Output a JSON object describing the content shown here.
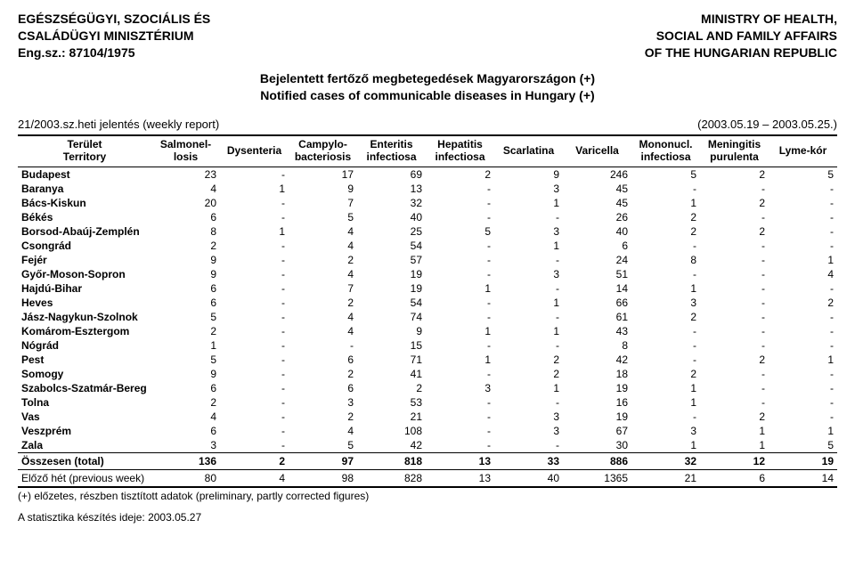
{
  "header": {
    "left_lines": [
      "EGÉSZSÉGÜGYI, SZOCIÁLIS ÉS",
      "CSALÁDÜGYI MINISZTÉRIUM",
      "Eng.sz.: 87104/1975"
    ],
    "right_lines": [
      "MINISTRY OF HEALTH,",
      "SOCIAL AND FAMILY AFFAIRS",
      "OF THE HUNGARIAN REPUBLIC"
    ]
  },
  "title": {
    "hu": "Bejelentett fertőző megbetegedések Magyarországon (+)",
    "en": "Notified cases of communicable diseases in Hungary (+)"
  },
  "subhead": {
    "left": "21/2003.sz.heti jelentés (weekly report)",
    "right": "(2003.05.19 – 2003.05.25.)"
  },
  "columns": [
    "Terület\nTerritory",
    "Salmonel-\nlosis",
    "Dysenteria",
    "Campylo-\nbacteriosis",
    "Enteritis\ninfectiosa",
    "Hepatitis\ninfectiosa",
    "Scarlatina",
    "Varicella",
    "Mononucl.\ninfectiosa",
    "Meningitis\npurulenta",
    "Lyme-kór"
  ],
  "rows": [
    {
      "t": "Budapest",
      "v": [
        "23",
        "-",
        "17",
        "69",
        "2",
        "9",
        "246",
        "5",
        "2",
        "5"
      ]
    },
    {
      "t": "Baranya",
      "v": [
        "4",
        "1",
        "9",
        "13",
        "-",
        "3",
        "45",
        "-",
        "-",
        "-"
      ]
    },
    {
      "t": "Bács-Kiskun",
      "v": [
        "20",
        "-",
        "7",
        "32",
        "-",
        "1",
        "45",
        "1",
        "2",
        "-"
      ]
    },
    {
      "t": "Békés",
      "v": [
        "6",
        "-",
        "5",
        "40",
        "-",
        "-",
        "26",
        "2",
        "-",
        "-"
      ]
    },
    {
      "t": "Borsod-Abaúj-Zemplén",
      "v": [
        "8",
        "1",
        "4",
        "25",
        "5",
        "3",
        "40",
        "2",
        "2",
        "-"
      ]
    },
    {
      "t": "Csongrád",
      "v": [
        "2",
        "-",
        "4",
        "54",
        "-",
        "1",
        "6",
        "-",
        "-",
        "-"
      ]
    },
    {
      "t": "Fejér",
      "v": [
        "9",
        "-",
        "2",
        "57",
        "-",
        "-",
        "24",
        "8",
        "-",
        "1"
      ]
    },
    {
      "t": "Győr-Moson-Sopron",
      "v": [
        "9",
        "-",
        "4",
        "19",
        "-",
        "3",
        "51",
        "-",
        "-",
        "4"
      ]
    },
    {
      "t": "Hajdú-Bihar",
      "v": [
        "6",
        "-",
        "7",
        "19",
        "1",
        "-",
        "14",
        "1",
        "-",
        "-"
      ]
    },
    {
      "t": "Heves",
      "v": [
        "6",
        "-",
        "2",
        "54",
        "-",
        "1",
        "66",
        "3",
        "-",
        "2"
      ]
    },
    {
      "t": "Jász-Nagykun-Szolnok",
      "v": [
        "5",
        "-",
        "4",
        "74",
        "-",
        "-",
        "61",
        "2",
        "-",
        "-"
      ]
    },
    {
      "t": "Komárom-Esztergom",
      "v": [
        "2",
        "-",
        "4",
        "9",
        "1",
        "1",
        "43",
        "-",
        "-",
        "-"
      ]
    },
    {
      "t": "Nógrád",
      "v": [
        "1",
        "-",
        "-",
        "15",
        "-",
        "-",
        "8",
        "-",
        "-",
        "-"
      ]
    },
    {
      "t": "Pest",
      "v": [
        "5",
        "-",
        "6",
        "71",
        "1",
        "2",
        "42",
        "-",
        "2",
        "1"
      ]
    },
    {
      "t": "Somogy",
      "v": [
        "9",
        "-",
        "2",
        "41",
        "-",
        "2",
        "18",
        "2",
        "-",
        "-"
      ]
    },
    {
      "t": "Szabolcs-Szatmár-Bereg",
      "v": [
        "6",
        "-",
        "6",
        "2",
        "3",
        "1",
        "19",
        "1",
        "-",
        "-"
      ]
    },
    {
      "t": "Tolna",
      "v": [
        "2",
        "-",
        "3",
        "53",
        "-",
        "-",
        "16",
        "1",
        "-",
        "-"
      ]
    },
    {
      "t": "Vas",
      "v": [
        "4",
        "-",
        "2",
        "21",
        "-",
        "3",
        "19",
        "-",
        "2",
        "-"
      ]
    },
    {
      "t": "Veszprém",
      "v": [
        "6",
        "-",
        "4",
        "108",
        "-",
        "3",
        "67",
        "3",
        "1",
        "1"
      ]
    },
    {
      "t": "Zala",
      "v": [
        "3",
        "-",
        "5",
        "42",
        "-",
        "-",
        "30",
        "1",
        "1",
        "5"
      ]
    }
  ],
  "total": {
    "label_main": "Összesen",
    "label_paren": " (total)",
    "v": [
      "136",
      "2",
      "97",
      "818",
      "13",
      "33",
      "886",
      "32",
      "12",
      "19"
    ]
  },
  "prev": {
    "label": "Előző hét (previous week)",
    "v": [
      "80",
      "4",
      "98",
      "828",
      "13",
      "40",
      "1365",
      "21",
      "6",
      "14"
    ]
  },
  "footnote": "(+) előzetes, részben tisztított adatok (preliminary, partly corrected figures)",
  "stat_date": "A statisztika készítés ideje: 2003.05.27"
}
